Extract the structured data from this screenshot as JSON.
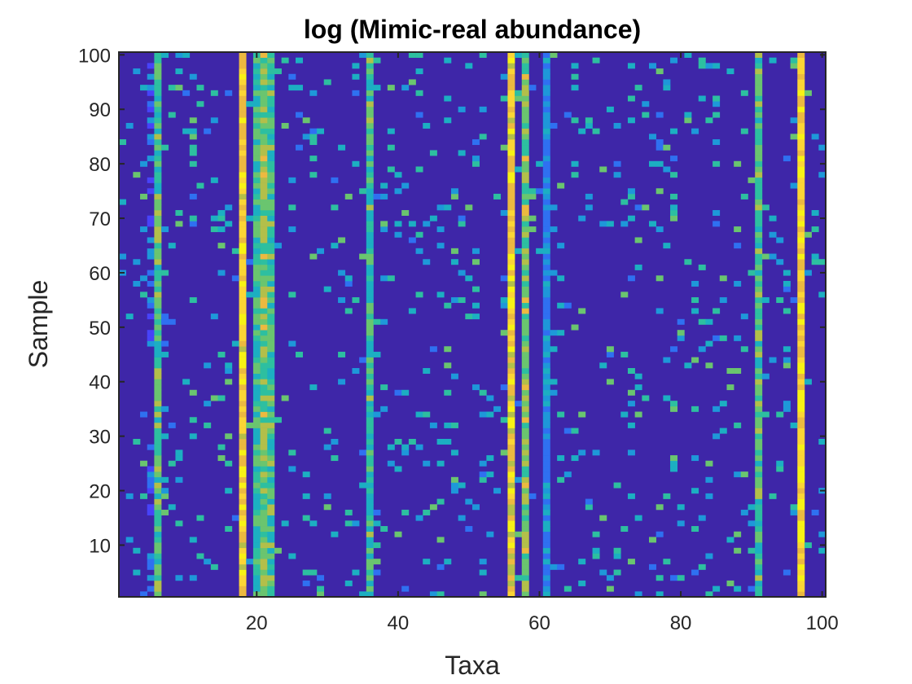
{
  "chart_data": {
    "type": "heatmap",
    "title": "log (Mimic-real abundance)",
    "xlabel": "Taxa",
    "ylabel": "Sample",
    "xlim": [
      0.5,
      100.5
    ],
    "ylim": [
      0.5,
      100.5
    ],
    "xticks": [
      20,
      40,
      60,
      80,
      100
    ],
    "yticks": [
      10,
      20,
      30,
      40,
      50,
      60,
      70,
      80,
      90,
      100
    ],
    "grid": false,
    "colorbar": false,
    "n_taxa": 100,
    "n_samples": 100,
    "colormap": [
      "#3e26a8",
      "#4743f9",
      "#2f70f1",
      "#1e98d9",
      "#1cafc2",
      "#2dbfa0",
      "#6ac56f",
      "#b3bf4a",
      "#ecb940",
      "#fcd535",
      "#f8f215"
    ],
    "column_intensity": {
      "5": 0.18,
      "6": 0.55,
      "18": 0.88,
      "20": 0.5,
      "21": 0.62,
      "22": 0.52,
      "36": 0.52,
      "56": 0.86,
      "58": 0.62,
      "61": 0.3,
      "91": 0.55,
      "97": 0.9
    },
    "background_intensity": 0.0,
    "sparse_density": 0.07
  }
}
